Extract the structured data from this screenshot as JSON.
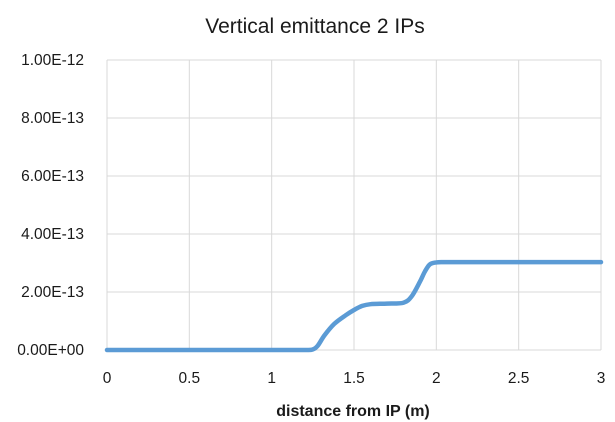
{
  "chart_data": {
    "type": "line",
    "title": "Vertical emittance 2 IPs",
    "xlabel": "distance from IP (m)",
    "ylabel": "",
    "xlim": [
      0,
      3
    ],
    "ylim": [
      0,
      1e-12
    ],
    "grid": true,
    "legend": "none",
    "x_tick_labels": [
      "0",
      "0.5",
      "1",
      "1.5",
      "2",
      "2.5",
      "3"
    ],
    "y_tick_labels": [
      "0.00E+00",
      "2.00E-13",
      "4.00E-13",
      "6.00E-13",
      "8.00E-13",
      "1.00E-12"
    ],
    "series": [
      {
        "color": "#5b9bd5",
        "x": [
          0,
          0.5,
          1.0,
          1.2,
          1.25,
          1.28,
          1.32,
          1.38,
          1.45,
          1.5,
          1.55,
          1.6,
          1.7,
          1.8,
          1.85,
          1.9,
          1.93,
          1.96,
          2.0,
          2.05,
          2.2,
          2.5,
          3.0
        ],
        "y": [
          0,
          0,
          0,
          0,
          2e-15,
          1.5e-14,
          5e-14,
          9e-14,
          1.2e-13,
          1.38e-13,
          1.52e-13,
          1.58e-13,
          1.6e-13,
          1.63e-13,
          1.85e-13,
          2.35e-13,
          2.7e-13,
          2.95e-13,
          3.02e-13,
          3.03e-13,
          3.03e-13,
          3.03e-13,
          3.03e-13
        ]
      }
    ]
  }
}
